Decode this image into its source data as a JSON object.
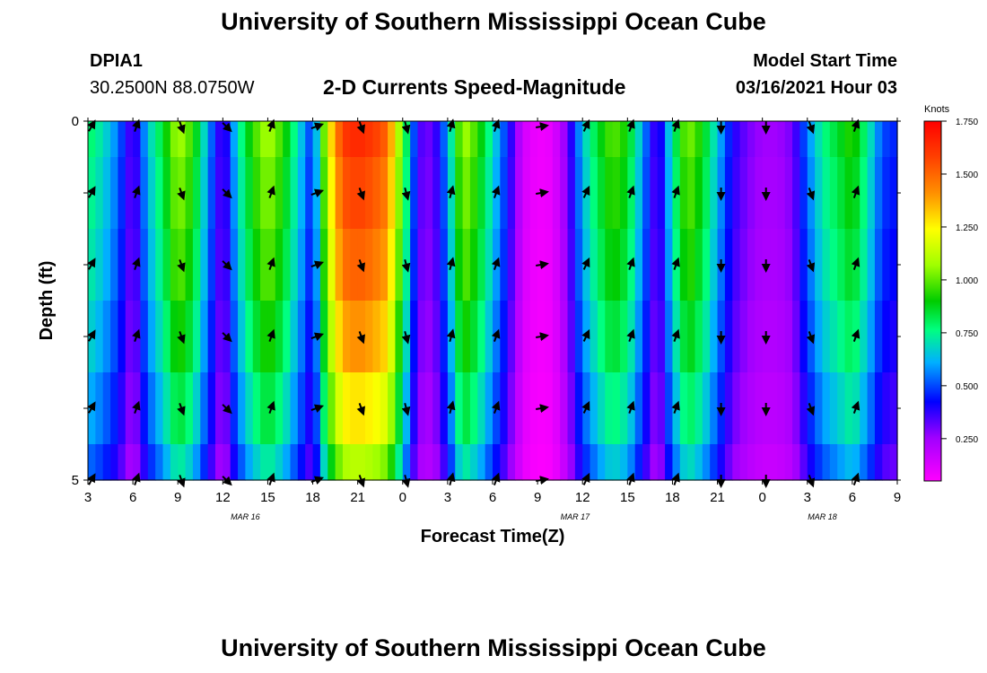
{
  "header": {
    "title": "University of Southern Mississippi Ocean Cube",
    "station_id": "DPIA1",
    "station_coords": "30.2500N 88.0750W",
    "plot_title": "2-D Currents Speed-Magnitude",
    "model_start_label": "Model Start Time",
    "model_start_value": "03/16/2021 Hour 03"
  },
  "footer": {
    "title": "University of Southern Mississippi Ocean Cube"
  },
  "chart_data": {
    "type": "heatmap",
    "title": "2-D Currents Speed-Magnitude",
    "xlabel": "Forecast Time(Z)",
    "ylabel": "Depth (ft)",
    "x_tick_labels": [
      "3",
      "6",
      "9",
      "12",
      "15",
      "18",
      "21",
      "0",
      "3",
      "6",
      "9",
      "12",
      "15",
      "18",
      "21",
      "0",
      "3",
      "6",
      "9"
    ],
    "x_range_hours": [
      0,
      54
    ],
    "y_tick_labels": [
      "0",
      "5"
    ],
    "y_range_ft": [
      0,
      5
    ],
    "date_labels": [
      {
        "text": "MAR 16",
        "hour": 10.5
      },
      {
        "text": "MAR 17",
        "hour": 32.5
      },
      {
        "text": "MAR 18",
        "hour": 49
      }
    ],
    "colorbar": {
      "unit": "Knots",
      "ticks": [
        "1.750",
        "1.500",
        "1.250",
        "1.000",
        "0.750",
        "0.500",
        "0.250"
      ],
      "tick_values": [
        1.75,
        1.5,
        1.25,
        1.0,
        0.75,
        0.5,
        0.25
      ],
      "range": [
        0.05,
        1.75
      ]
    },
    "speed_profile_hours": [
      0,
      1,
      2,
      3,
      4,
      5,
      6,
      7,
      8,
      9,
      10,
      11,
      12,
      13,
      14,
      15,
      16,
      17,
      18,
      19,
      20,
      21,
      22,
      23,
      24,
      25,
      26,
      27,
      28,
      29,
      30,
      31,
      32,
      33,
      34,
      35,
      36,
      37,
      38,
      39,
      40,
      41,
      42,
      43,
      44,
      45,
      46,
      47,
      48,
      49,
      50,
      51,
      52,
      53,
      54
    ],
    "speed_profile_knots": [
      0.8,
      0.7,
      0.55,
      0.3,
      0.65,
      0.85,
      1.1,
      0.95,
      0.6,
      0.3,
      0.7,
      0.95,
      1.1,
      0.95,
      0.7,
      0.45,
      1.2,
      1.6,
      1.65,
      1.6,
      1.5,
      0.95,
      0.35,
      0.3,
      0.6,
      1.1,
      0.95,
      0.7,
      0.45,
      0.15,
      0.08,
      0.1,
      0.3,
      0.65,
      0.85,
      1.0,
      0.9,
      0.6,
      0.3,
      0.75,
      1.05,
      0.9,
      0.65,
      0.4,
      0.3,
      0.25,
      0.25,
      0.3,
      0.55,
      0.75,
      0.85,
      0.95,
      0.75,
      0.5,
      0.45
    ],
    "depth_layers_ft": [
      0,
      0.5,
      1.5,
      2.5,
      3.5,
      4.5,
      5.0
    ],
    "depth_factors": [
      1.0,
      0.96,
      0.92,
      0.86,
      0.78,
      0.68
    ],
    "vector_hours": [
      0,
      3,
      6,
      9,
      12,
      15,
      18,
      21,
      24,
      27,
      30,
      33,
      36,
      39,
      42,
      45,
      48,
      51
    ],
    "vector_depths_ft": [
      0,
      1,
      2,
      3,
      4,
      5
    ],
    "vector_directions_deg": [
      30,
      20,
      160,
      135,
      20,
      70,
      160,
      165,
      15,
      20,
      80,
      25,
      20,
      20,
      180,
      180,
      160,
      20
    ]
  }
}
